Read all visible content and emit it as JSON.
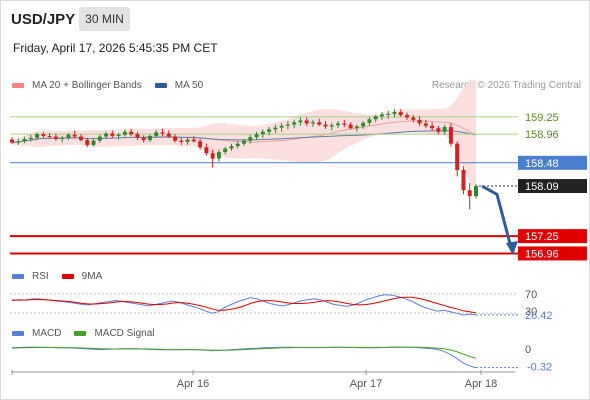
{
  "header": {
    "symbol": "USD/JPY",
    "timeframe": "30 MIN",
    "datetime": "Friday, April 17, 2026 5:45:35 PM CET"
  },
  "legend_price": [
    {
      "label": "MA 20 + Bollinger Bands",
      "color": "#ff8080"
    },
    {
      "label": "MA 50",
      "color": "#2f5d98"
    }
  ],
  "credit": "Research © 2026 Trading Central",
  "legend_rsi": [
    {
      "label": "RSI",
      "color": "#5b7fd6"
    },
    {
      "label": "9MA",
      "color": "#e00000"
    }
  ],
  "legend_macd": [
    {
      "label": "MACD",
      "color": "#5b7fd6"
    },
    {
      "label": "MACD Signal",
      "color": "#4aa02c"
    }
  ],
  "colors": {
    "up": "#2f8a2f",
    "down": "#d42020",
    "resistance": "#a8d080",
    "pivot": "#4a7fd0",
    "support": "#e00000",
    "arrow": "#2f5d98",
    "bollinger": "#fcdcdc",
    "ma50": "#5f7fa8"
  },
  "chart_data": [
    {
      "type": "candlestick",
      "name": "price",
      "x_ticks": [
        "Apr 16",
        "Apr 17",
        "Apr 18"
      ],
      "ylim": [
        156.85,
        159.6
      ],
      "levels": [
        {
          "label": "159.25",
          "value": 159.25,
          "kind": "resistance"
        },
        {
          "label": "158.96",
          "value": 158.96,
          "kind": "resistance"
        },
        {
          "label": "158.48",
          "value": 158.48,
          "kind": "pivot"
        },
        {
          "label": "157.25",
          "value": 157.25,
          "kind": "support"
        },
        {
          "label": "156.96",
          "value": 156.96,
          "kind": "support"
        }
      ],
      "last_price": {
        "label": "158.09",
        "value": 158.09
      },
      "projection": [
        [
          158.09,
          0
        ],
        [
          157.95,
          1
        ],
        [
          157.0,
          2
        ]
      ],
      "candles": [
        [
          158.87,
          158.91,
          158.8,
          158.82
        ],
        [
          158.82,
          158.89,
          158.78,
          158.84
        ],
        [
          158.84,
          158.92,
          158.81,
          158.88
        ],
        [
          158.88,
          158.95,
          158.84,
          158.9
        ],
        [
          158.9,
          158.99,
          158.86,
          158.96
        ],
        [
          158.96,
          159.0,
          158.9,
          158.93
        ],
        [
          158.93,
          158.98,
          158.88,
          158.92
        ],
        [
          158.92,
          158.97,
          158.85,
          158.88
        ],
        [
          158.88,
          158.93,
          158.82,
          158.9
        ],
        [
          158.9,
          158.98,
          158.86,
          158.95
        ],
        [
          158.95,
          159.02,
          158.9,
          158.92
        ],
        [
          158.92,
          158.96,
          158.84,
          158.86
        ],
        [
          158.86,
          158.9,
          158.74,
          158.78
        ],
        [
          158.78,
          158.88,
          158.75,
          158.85
        ],
        [
          158.85,
          158.95,
          158.82,
          158.92
        ],
        [
          158.92,
          159.0,
          158.88,
          158.97
        ],
        [
          158.97,
          159.02,
          158.9,
          158.93
        ],
        [
          158.93,
          158.98,
          158.87,
          158.95
        ],
        [
          158.95,
          159.04,
          158.92,
          159.0
        ],
        [
          159.0,
          159.05,
          158.93,
          158.96
        ],
        [
          158.96,
          159.0,
          158.86,
          158.9
        ],
        [
          158.9,
          158.94,
          158.82,
          158.86
        ],
        [
          158.86,
          158.96,
          158.83,
          158.93
        ],
        [
          158.93,
          159.03,
          158.9,
          158.99
        ],
        [
          158.99,
          159.05,
          158.93,
          158.97
        ],
        [
          158.97,
          159.02,
          158.9,
          158.92
        ],
        [
          158.92,
          158.96,
          158.82,
          158.85
        ],
        [
          158.85,
          158.9,
          158.78,
          158.83
        ],
        [
          158.83,
          158.9,
          158.78,
          158.87
        ],
        [
          158.87,
          158.93,
          158.82,
          158.84
        ],
        [
          158.84,
          158.88,
          158.7,
          158.74
        ],
        [
          158.74,
          158.8,
          158.6,
          158.64
        ],
        [
          158.64,
          158.7,
          158.4,
          158.55
        ],
        [
          158.55,
          158.7,
          158.5,
          158.66
        ],
        [
          158.66,
          158.75,
          158.62,
          158.72
        ],
        [
          158.72,
          158.8,
          158.68,
          158.76
        ],
        [
          158.76,
          158.84,
          158.72,
          158.8
        ],
        [
          158.8,
          158.88,
          158.76,
          158.85
        ],
        [
          158.85,
          158.95,
          158.8,
          158.91
        ],
        [
          158.91,
          159.0,
          158.86,
          158.96
        ],
        [
          158.96,
          159.04,
          158.9,
          159.0
        ],
        [
          159.0,
          159.08,
          158.94,
          159.04
        ],
        [
          159.04,
          159.12,
          158.98,
          159.07
        ],
        [
          159.07,
          159.15,
          159.0,
          159.1
        ],
        [
          159.1,
          159.18,
          159.04,
          159.12
        ],
        [
          159.12,
          159.2,
          159.06,
          159.16
        ],
        [
          159.16,
          159.24,
          159.1,
          159.19
        ],
        [
          159.19,
          159.24,
          159.1,
          159.14
        ],
        [
          159.14,
          159.2,
          159.08,
          159.16
        ],
        [
          159.16,
          159.22,
          159.1,
          159.12
        ],
        [
          159.12,
          159.18,
          159.05,
          159.09
        ],
        [
          159.09,
          159.15,
          159.02,
          159.11
        ],
        [
          159.11,
          159.18,
          159.06,
          159.14
        ],
        [
          159.14,
          159.2,
          159.08,
          159.12
        ],
        [
          159.12,
          159.16,
          159.04,
          159.06
        ],
        [
          159.06,
          159.12,
          159.0,
          159.09
        ],
        [
          159.09,
          159.18,
          159.05,
          159.15
        ],
        [
          159.15,
          159.24,
          159.1,
          159.21
        ],
        [
          159.21,
          159.28,
          159.16,
          159.26
        ],
        [
          159.26,
          159.33,
          159.2,
          159.29
        ],
        [
          159.29,
          159.35,
          159.22,
          159.3
        ],
        [
          159.3,
          159.38,
          159.24,
          159.33
        ],
        [
          159.33,
          159.38,
          159.25,
          159.28
        ],
        [
          159.28,
          159.32,
          159.2,
          159.24
        ],
        [
          159.24,
          159.28,
          159.16,
          159.2
        ],
        [
          159.2,
          159.26,
          159.1,
          159.14
        ],
        [
          159.14,
          159.2,
          159.06,
          159.1
        ],
        [
          159.1,
          159.16,
          159.02,
          159.06
        ],
        [
          159.06,
          159.1,
          158.96,
          159.0
        ],
        [
          159.0,
          159.12,
          158.95,
          159.08
        ],
        [
          159.08,
          159.14,
          158.75,
          158.8
        ],
        [
          158.8,
          158.84,
          158.25,
          158.36
        ],
        [
          158.36,
          158.42,
          157.95,
          158.02
        ],
        [
          158.02,
          158.14,
          157.7,
          157.92
        ],
        [
          157.92,
          158.12,
          157.88,
          158.09
        ]
      ]
    },
    {
      "type": "line",
      "name": "RSI",
      "ylim": [
        0,
        100
      ],
      "level_labels": [
        {
          "label": "70",
          "value": 70
        },
        {
          "label": "30",
          "value": 30
        }
      ],
      "last_value": {
        "label": "26.42",
        "value": 26.42
      },
      "series": [
        {
          "name": "RSI",
          "values": [
            56,
            58,
            57,
            59,
            60,
            58,
            57,
            55,
            54,
            52,
            50,
            48,
            47,
            50,
            52,
            54,
            56,
            55,
            52,
            50,
            48,
            45,
            47,
            50,
            53,
            55,
            52,
            48,
            44,
            40,
            35,
            30,
            33,
            42,
            48,
            54,
            58,
            62,
            60,
            55,
            50,
            47,
            45,
            48,
            52,
            56,
            58,
            60,
            57,
            52,
            48,
            46,
            44,
            47,
            52,
            58,
            62,
            66,
            68,
            67,
            64,
            60,
            55,
            48,
            42,
            38,
            34,
            36,
            33,
            30,
            26,
            28,
            26.42
          ]
        },
        {
          "name": "9MA",
          "values": [
            57,
            57,
            57,
            58,
            58,
            58,
            57,
            56,
            55,
            54,
            52,
            50,
            49,
            49,
            50,
            51,
            53,
            54,
            54,
            53,
            51,
            49,
            48,
            48,
            49,
            51,
            52,
            51,
            49,
            46,
            43,
            39,
            36,
            36,
            38,
            41,
            45,
            50,
            54,
            56,
            56,
            55,
            53,
            51,
            50,
            50,
            51,
            53,
            55,
            56,
            55,
            53,
            50,
            48,
            47,
            48,
            50,
            53,
            56,
            59,
            62,
            63,
            63,
            61,
            58,
            54,
            50,
            46,
            42,
            39,
            35,
            33,
            31
          ]
        }
      ]
    },
    {
      "type": "line",
      "name": "MACD",
      "level_labels": [
        {
          "label": "0",
          "value": 0
        }
      ],
      "last_value": {
        "label": "-0.32",
        "value": -0.32
      },
      "ylim": [
        -0.36,
        0.12
      ],
      "series": [
        {
          "name": "MACD",
          "values": [
            0.02,
            0.025,
            0.03,
            0.032,
            0.03,
            0.028,
            0.025,
            0.022,
            0.02,
            0.018,
            0.012,
            0.006,
            0.0,
            -0.006,
            -0.008,
            -0.004,
            0.0,
            0.004,
            0.006,
            0.004,
            0.0,
            -0.004,
            -0.008,
            -0.012,
            -0.014,
            -0.012,
            -0.01,
            -0.008,
            -0.01,
            -0.016,
            -0.022,
            -0.03,
            -0.026,
            -0.018,
            -0.01,
            -0.004,
            0.002,
            0.008,
            0.014,
            0.02,
            0.024,
            0.028,
            0.03,
            0.03,
            0.028,
            0.026,
            0.024,
            0.024,
            0.026,
            0.028,
            0.03,
            0.03,
            0.028,
            0.026,
            0.022,
            0.02,
            0.02,
            0.024,
            0.028,
            0.032,
            0.034,
            0.033,
            0.03,
            0.024,
            0.016,
            0.006,
            -0.006,
            -0.04,
            -0.09,
            -0.16,
            -0.24,
            -0.29,
            -0.32
          ]
        },
        {
          "name": "MACD Signal",
          "values": [
            0.015,
            0.018,
            0.021,
            0.024,
            0.026,
            0.027,
            0.026,
            0.025,
            0.024,
            0.022,
            0.02,
            0.017,
            0.013,
            0.009,
            0.005,
            0.002,
            0.0,
            0.001,
            0.002,
            0.003,
            0.002,
            0.001,
            -0.002,
            -0.005,
            -0.008,
            -0.01,
            -0.01,
            -0.01,
            -0.01,
            -0.012,
            -0.015,
            -0.019,
            -0.022,
            -0.021,
            -0.019,
            -0.015,
            -0.01,
            -0.005,
            0.001,
            0.006,
            0.011,
            0.016,
            0.02,
            0.023,
            0.025,
            0.026,
            0.026,
            0.025,
            0.025,
            0.026,
            0.027,
            0.028,
            0.028,
            0.028,
            0.027,
            0.026,
            0.025,
            0.025,
            0.026,
            0.027,
            0.029,
            0.03,
            0.031,
            0.03,
            0.027,
            0.022,
            0.016,
            0.004,
            -0.015,
            -0.045,
            -0.085,
            -0.125,
            -0.16
          ]
        }
      ]
    }
  ]
}
